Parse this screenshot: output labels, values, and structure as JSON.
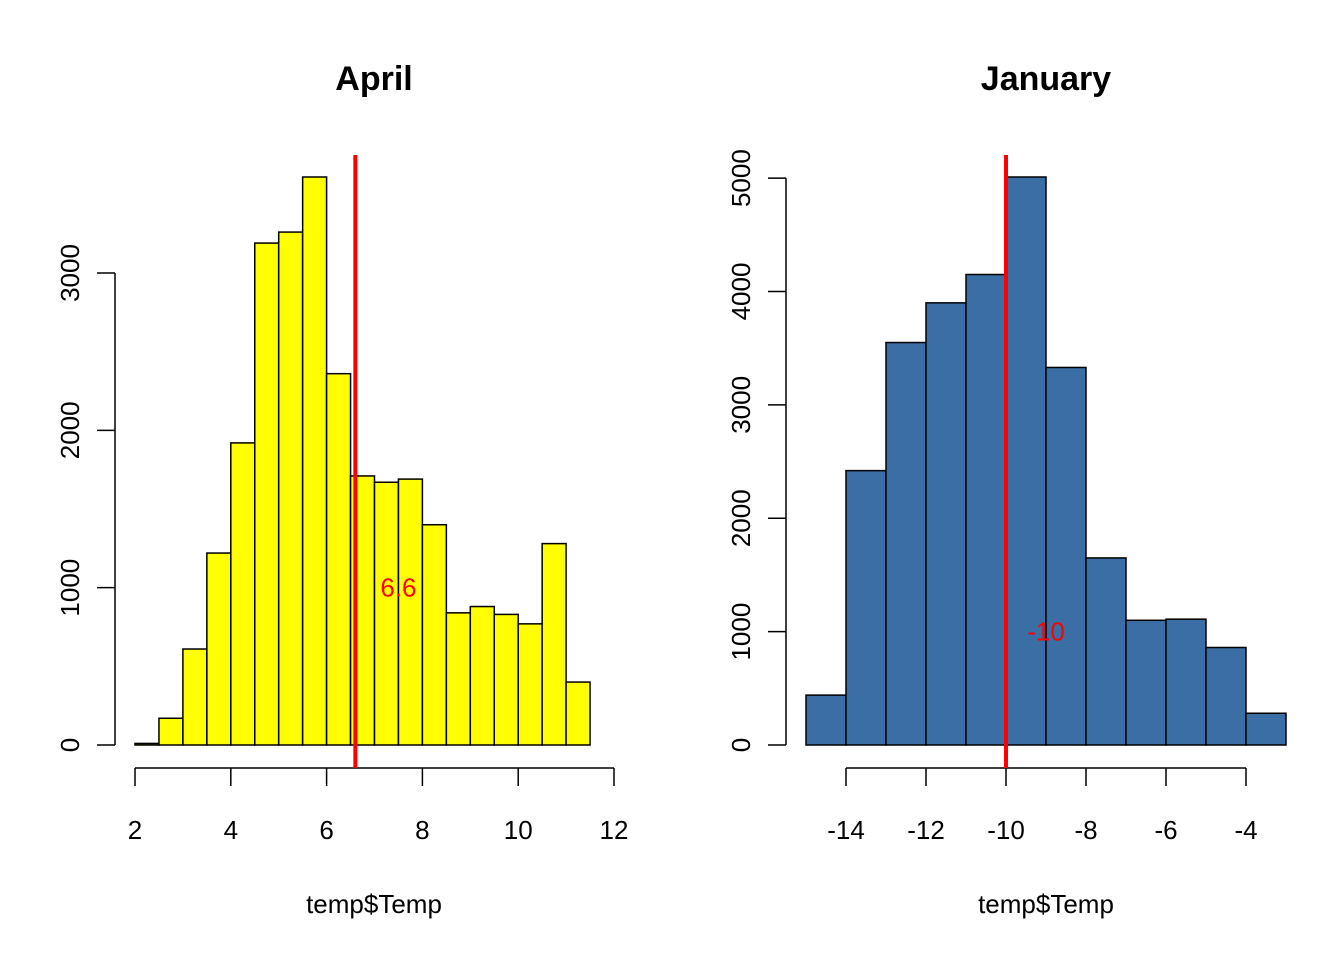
{
  "chart_data": [
    {
      "type": "bar",
      "title": "April",
      "xlabel": "temp$Temp",
      "ylabel": "",
      "bar_color": "#ffff00",
      "bin_edges": [
        2,
        2.5,
        3,
        3.5,
        4,
        4.5,
        5,
        5.5,
        6,
        6.5,
        7,
        7.5,
        8,
        8.5,
        9,
        9.5,
        10,
        10.5,
        11,
        11.5
      ],
      "values": [
        10,
        170,
        610,
        1220,
        1920,
        3190,
        3260,
        3610,
        2360,
        1710,
        1670,
        1690,
        1400,
        840,
        880,
        830,
        770,
        1280,
        400
      ],
      "xlim": [
        2,
        12
      ],
      "ylim": [
        0,
        3610
      ],
      "x_ticks": [
        "2",
        "4",
        "6",
        "8",
        "10",
        "12"
      ],
      "y_ticks": [
        "0",
        "1000",
        "2000",
        "3000"
      ],
      "vline": {
        "x": 6.6,
        "color": "#ff0000"
      },
      "annotation": {
        "text": "6.6",
        "x": 7.5,
        "y": 1000,
        "color": "#ff0000"
      }
    },
    {
      "type": "bar",
      "title": "January",
      "xlabel": "temp$Temp",
      "ylabel": "",
      "bar_color": "#3a6ea5",
      "bin_edges": [
        -15,
        -14,
        -13,
        -12,
        -11,
        -10,
        -9,
        -8,
        -7,
        -6,
        -5,
        -4,
        -3
      ],
      "values": [
        440,
        2420,
        3550,
        3900,
        4150,
        5010,
        3330,
        1650,
        1100,
        1110,
        860,
        280
      ],
      "xlim": [
        -15,
        -3
      ],
      "ylim": [
        0,
        5010
      ],
      "x_ticks": [
        "-14",
        "-12",
        "-10",
        "-8",
        "-6",
        "-4"
      ],
      "y_ticks": [
        "0",
        "1000",
        "2000",
        "3000",
        "4000",
        "5000"
      ],
      "vline": {
        "x": -10,
        "color": "#ff0000"
      },
      "annotation": {
        "text": "-10",
        "x": -9,
        "y": 1000,
        "color": "#ff0000"
      }
    }
  ]
}
